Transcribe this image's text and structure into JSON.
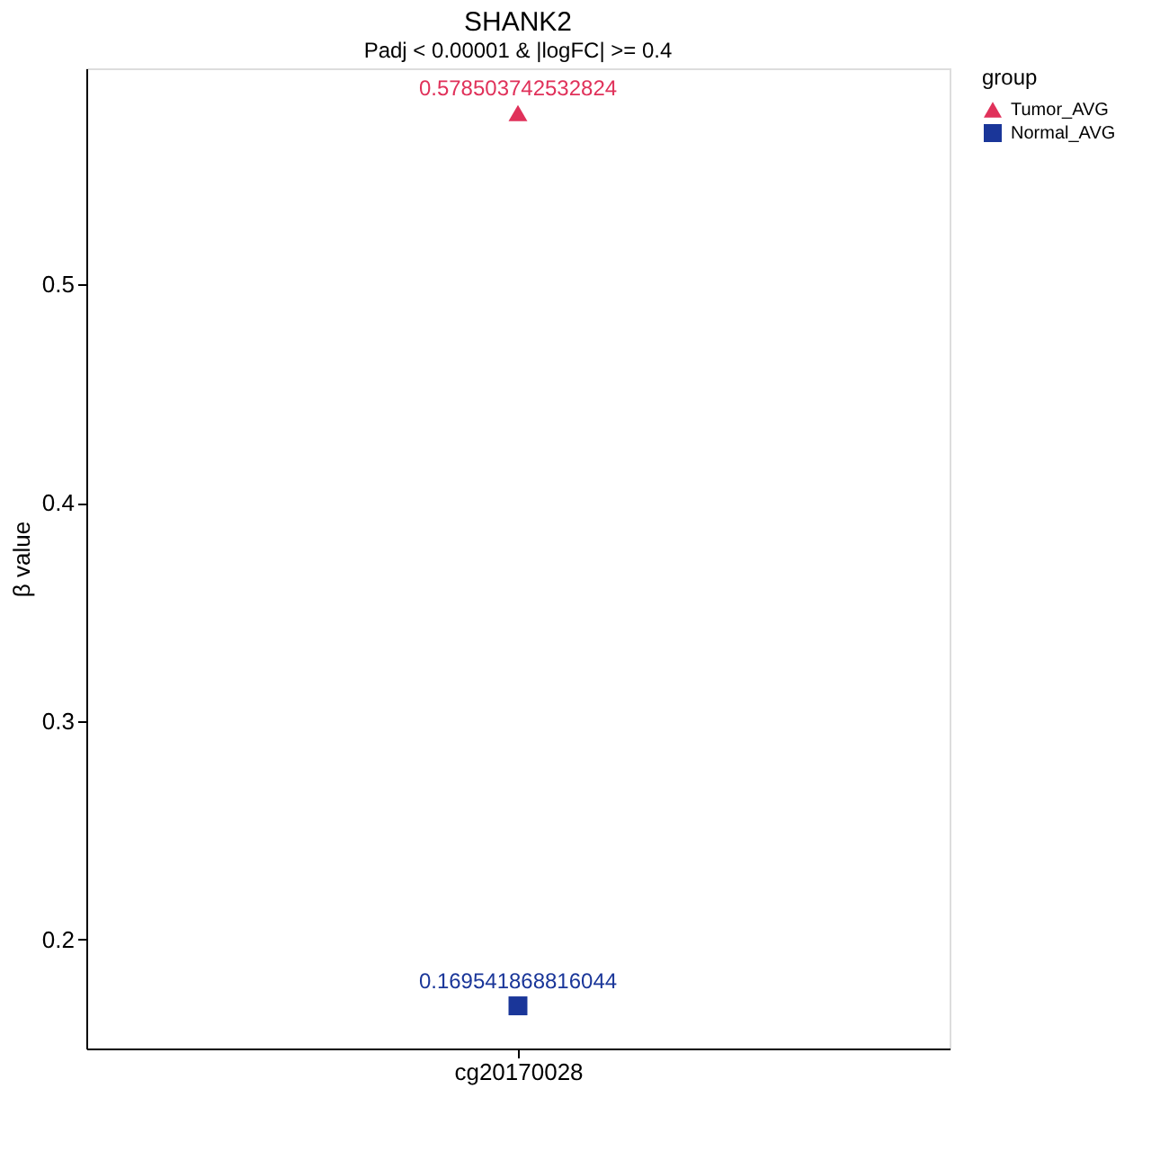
{
  "chart_data": {
    "type": "scatter",
    "title": "SHANK2",
    "subtitle": "Padj < 0.00001 & |logFC| >= 0.4",
    "ylabel": "β value",
    "legend_title": "group",
    "categories": [
      "cg20170028"
    ],
    "series": [
      {
        "name": "Tumor_AVG",
        "color": "#e0315a",
        "marker": "triangle",
        "values": [
          0.578503742532824
        ]
      },
      {
        "name": "Normal_AVG",
        "color": "#1a3699",
        "marker": "square",
        "values": [
          0.169541868816044
        ]
      }
    ],
    "ylim": [
      0.15,
      0.599
    ],
    "yticks": [
      0.2,
      0.3,
      0.4,
      0.5
    ],
    "grid": false,
    "legend": "right",
    "data_labels": true
  }
}
